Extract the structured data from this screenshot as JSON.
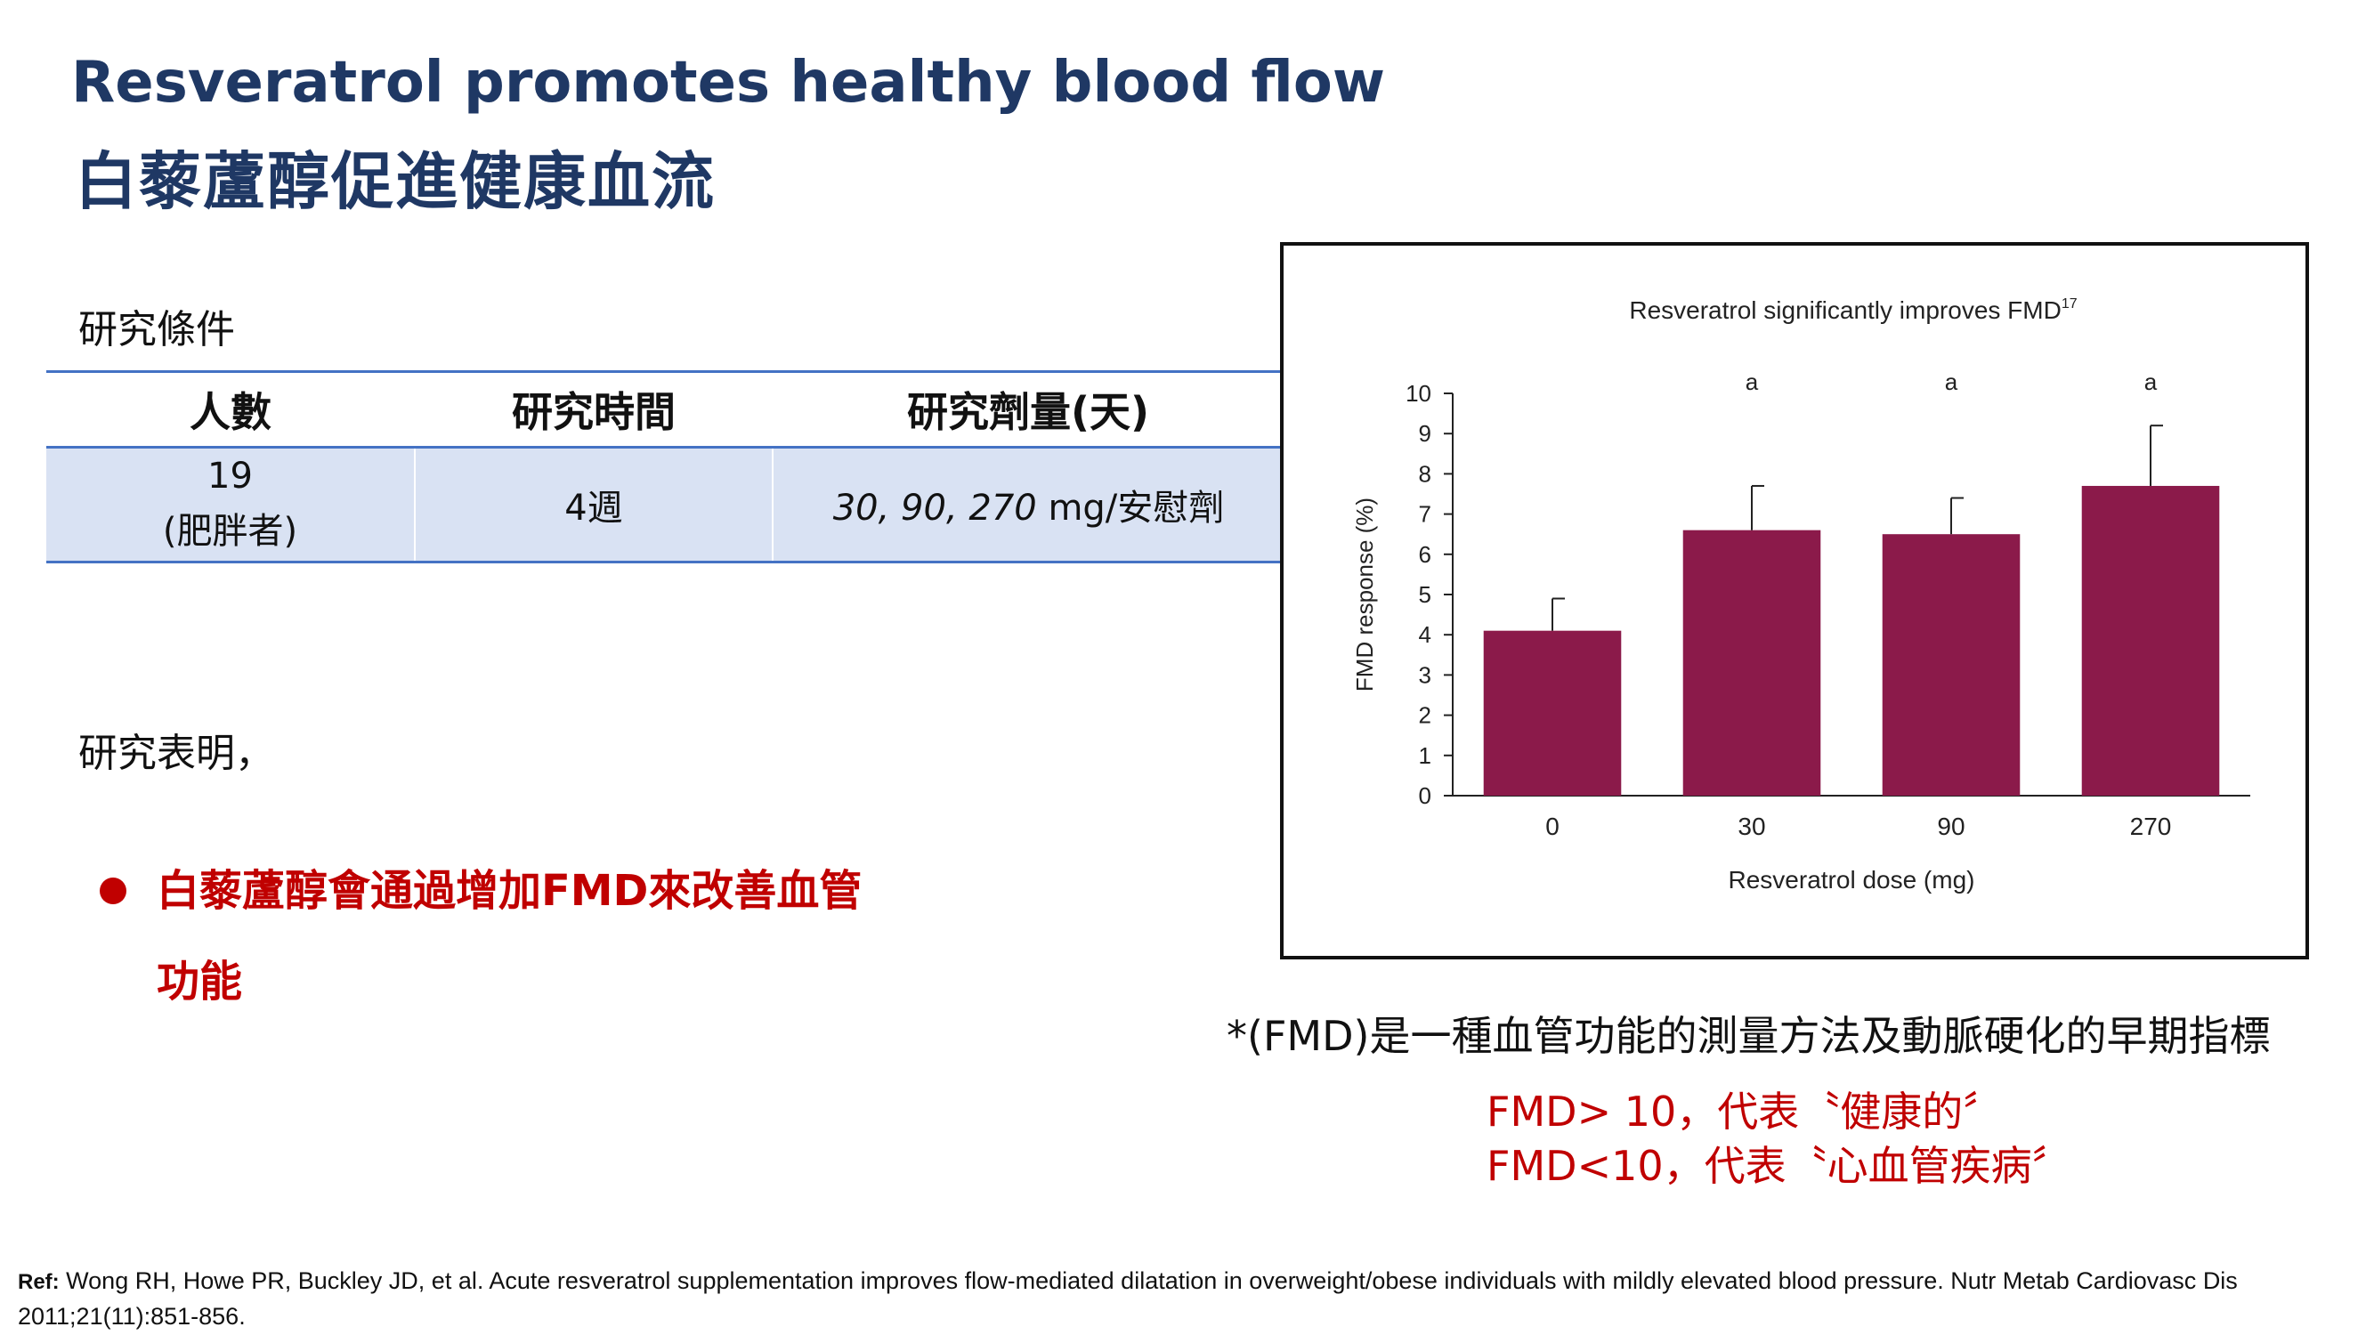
{
  "slide": {
    "title_en": "Resveratrol promotes healthy blood flow",
    "title_zh": "白藜蘆醇促進健康血流"
  },
  "study": {
    "label": "研究條件",
    "headers": [
      "人數",
      "研究時間",
      "研究劑量(天)"
    ],
    "row": {
      "participants": "19",
      "participants_note": "(肥胖者)",
      "duration": "4週",
      "dose_values": "30, 90, 270",
      "dose_unit": " mg/安慰劑"
    }
  },
  "findings": {
    "label": "研究表明，",
    "bullet_line1": "白藜蘆醇會通過增加FMD來改善血管",
    "bullet_line2": "功能"
  },
  "note": {
    "definition": "*(FMD)是一種血管功能的測量方法及動脈硬化的早期指標",
    "line1": "FMD> 10，代表〝健康的〞",
    "line2": "FMD<10，代表〝心血管疾病〞"
  },
  "reference": {
    "label": "Ref:",
    "text": " Wong RH, Howe PR, Buckley JD, et al. Acute resveratrol supplementation improves flow-mediated dilatation in overweight/obese individuals with mildly elevated blood pressure. Nutr Metab Cardiovasc Dis 2011;21(11):851-856."
  },
  "chart_data": {
    "type": "bar",
    "title": "Resveratrol significantly improves FMD",
    "title_superscript": "17",
    "xlabel": "Resveratrol dose (mg)",
    "ylabel": "FMD response (%)",
    "categories": [
      "0",
      "30",
      "90",
      "270"
    ],
    "values": [
      4.1,
      6.6,
      6.5,
      7.7
    ],
    "error_upper": [
      4.9,
      7.7,
      7.4,
      9.2
    ],
    "significance": [
      "",
      "a",
      "a",
      "a"
    ],
    "ylim": [
      0,
      10
    ],
    "yticks": [
      "0",
      "1",
      "2",
      "3",
      "4",
      "5",
      "6",
      "7",
      "8",
      "9",
      "10"
    ],
    "bar_color": "#8b1a4a",
    "grid": false
  }
}
